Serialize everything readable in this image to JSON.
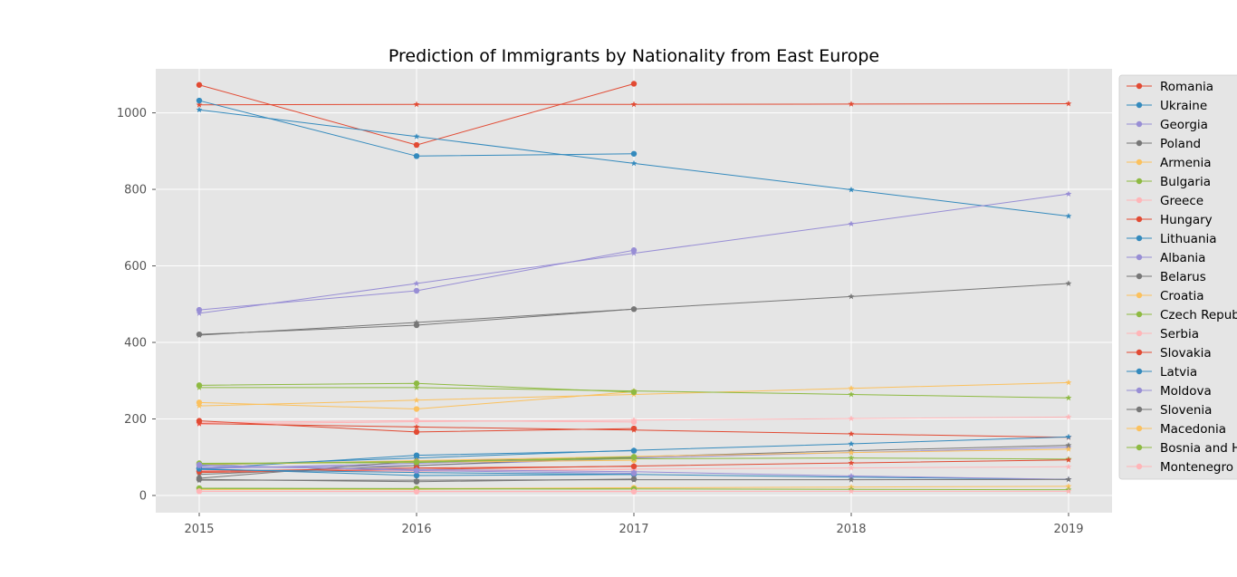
{
  "chart_data": {
    "type": "line",
    "title": "Prediction of Immigrants by Nationality from East Europe",
    "xlabel": "",
    "ylabel": "",
    "x": [
      2015,
      2016,
      2017,
      2018,
      2019
    ],
    "xlim": [
      2014.8,
      2019.2
    ],
    "ylim": [
      -45,
      1115
    ],
    "yticks": [
      0,
      200,
      400,
      600,
      800,
      1000
    ],
    "grid": true,
    "legend_position": "right, outside plot (clipped)",
    "note": "Each series: actual values (circle markers, 2015-2017) and predicted values (star markers, 2015-2019).",
    "series": [
      {
        "name": "Romania",
        "color": "#E24A33",
        "actual": [
          1073,
          916,
          1076
        ],
        "predicted": [
          1021,
          1022,
          1022,
          1023,
          1024
        ]
      },
      {
        "name": "Ukraine",
        "color": "#348ABD",
        "actual": [
          1032,
          887,
          893
        ],
        "predicted": [
          1008,
          938,
          868,
          799,
          730
        ]
      },
      {
        "name": "Georgia",
        "color": "#988ED5",
        "actual": [
          485,
          535,
          641
        ],
        "predicted": [
          476,
          554,
          633,
          710,
          788
        ]
      },
      {
        "name": "Poland",
        "color": "#777777",
        "actual": [
          421,
          445,
          487
        ],
        "predicted": [
          419,
          452,
          487,
          520,
          554
        ]
      },
      {
        "name": "Armenia",
        "color": "#FBC15E",
        "actual": [
          243,
          226,
          271
        ],
        "predicted": [
          234,
          249,
          264,
          280,
          295
        ]
      },
      {
        "name": "Bulgaria",
        "color": "#8EBA42",
        "actual": [
          288,
          293,
          270
        ],
        "predicted": [
          282,
          282,
          273,
          264,
          255
        ]
      },
      {
        "name": "Greece",
        "color": "#FFB5B8",
        "actual": [
          190,
          196,
          192
        ],
        "predicted": [
          186,
          193,
          197,
          201,
          205
        ]
      },
      {
        "name": "Hungary",
        "color": "#E24A33",
        "actual": [
          195,
          166,
          175
        ],
        "predicted": [
          188,
          179,
          171,
          161,
          152
        ]
      },
      {
        "name": "Lithuania",
        "color": "#348ABD",
        "actual": [
          70,
          105,
          117
        ],
        "predicted": [
          78,
          98,
          118,
          135,
          153
        ]
      },
      {
        "name": "Albania",
        "color": "#988ED5",
        "actual": [
          72,
          78,
          97
        ],
        "predicted": [
          70,
          84,
          98,
          112,
          126
        ]
      },
      {
        "name": "Belarus",
        "color": "#777777",
        "actual": [
          45,
          90,
          98
        ],
        "predicted": [
          55,
          78,
          101,
          117,
          131
        ]
      },
      {
        "name": "Croatia",
        "color": "#FBC15E",
        "actual": [
          82,
          87,
          92
        ],
        "predicted": [
          80,
          91,
          102,
          112,
          121
        ]
      },
      {
        "name": "Czech Republic",
        "color": "#8EBA42",
        "actual": [
          84,
          86,
          101
        ],
        "predicted": [
          82,
          89,
          96,
          98,
          95
        ]
      },
      {
        "name": "Serbia",
        "color": "#FFB5B8",
        "actual": [
          65,
          63,
          68
        ],
        "predicted": [
          62,
          65,
          69,
          72,
          75
        ]
      },
      {
        "name": "Slovakia",
        "color": "#E24A33",
        "actual": [
          63,
          72,
          76
        ],
        "predicted": [
          60,
          68,
          77,
          85,
          93
        ]
      },
      {
        "name": "Latvia",
        "color": "#348ABD",
        "actual": [
          70,
          52,
          55
        ],
        "predicted": [
          68,
          60,
          55,
          48,
          42
        ]
      },
      {
        "name": "Moldova",
        "color": "#988ED5",
        "actual": [
          80,
          65,
          58
        ],
        "predicted": [
          76,
          68,
          62,
          51,
          42
        ]
      },
      {
        "name": "Slovenia",
        "color": "#777777",
        "actual": [
          42,
          36,
          43
        ],
        "predicted": [
          40,
          40,
          41,
          41,
          42
        ]
      },
      {
        "name": "Macedonia",
        "color": "#FBC15E",
        "actual": [
          16,
          16,
          20
        ],
        "predicted": [
          16,
          18,
          20,
          22,
          24
        ]
      },
      {
        "name": "Bosnia and Herzegovina",
        "color": "#8EBA42",
        "actual": [
          19,
          18,
          17
        ],
        "predicted": [
          18,
          17,
          17,
          16,
          15
        ]
      },
      {
        "name": "Montenegro",
        "color": "#FFB5B8",
        "actual": [
          11,
          10,
          10
        ],
        "predicted": [
          11,
          11,
          11,
          11,
          11
        ]
      }
    ]
  }
}
